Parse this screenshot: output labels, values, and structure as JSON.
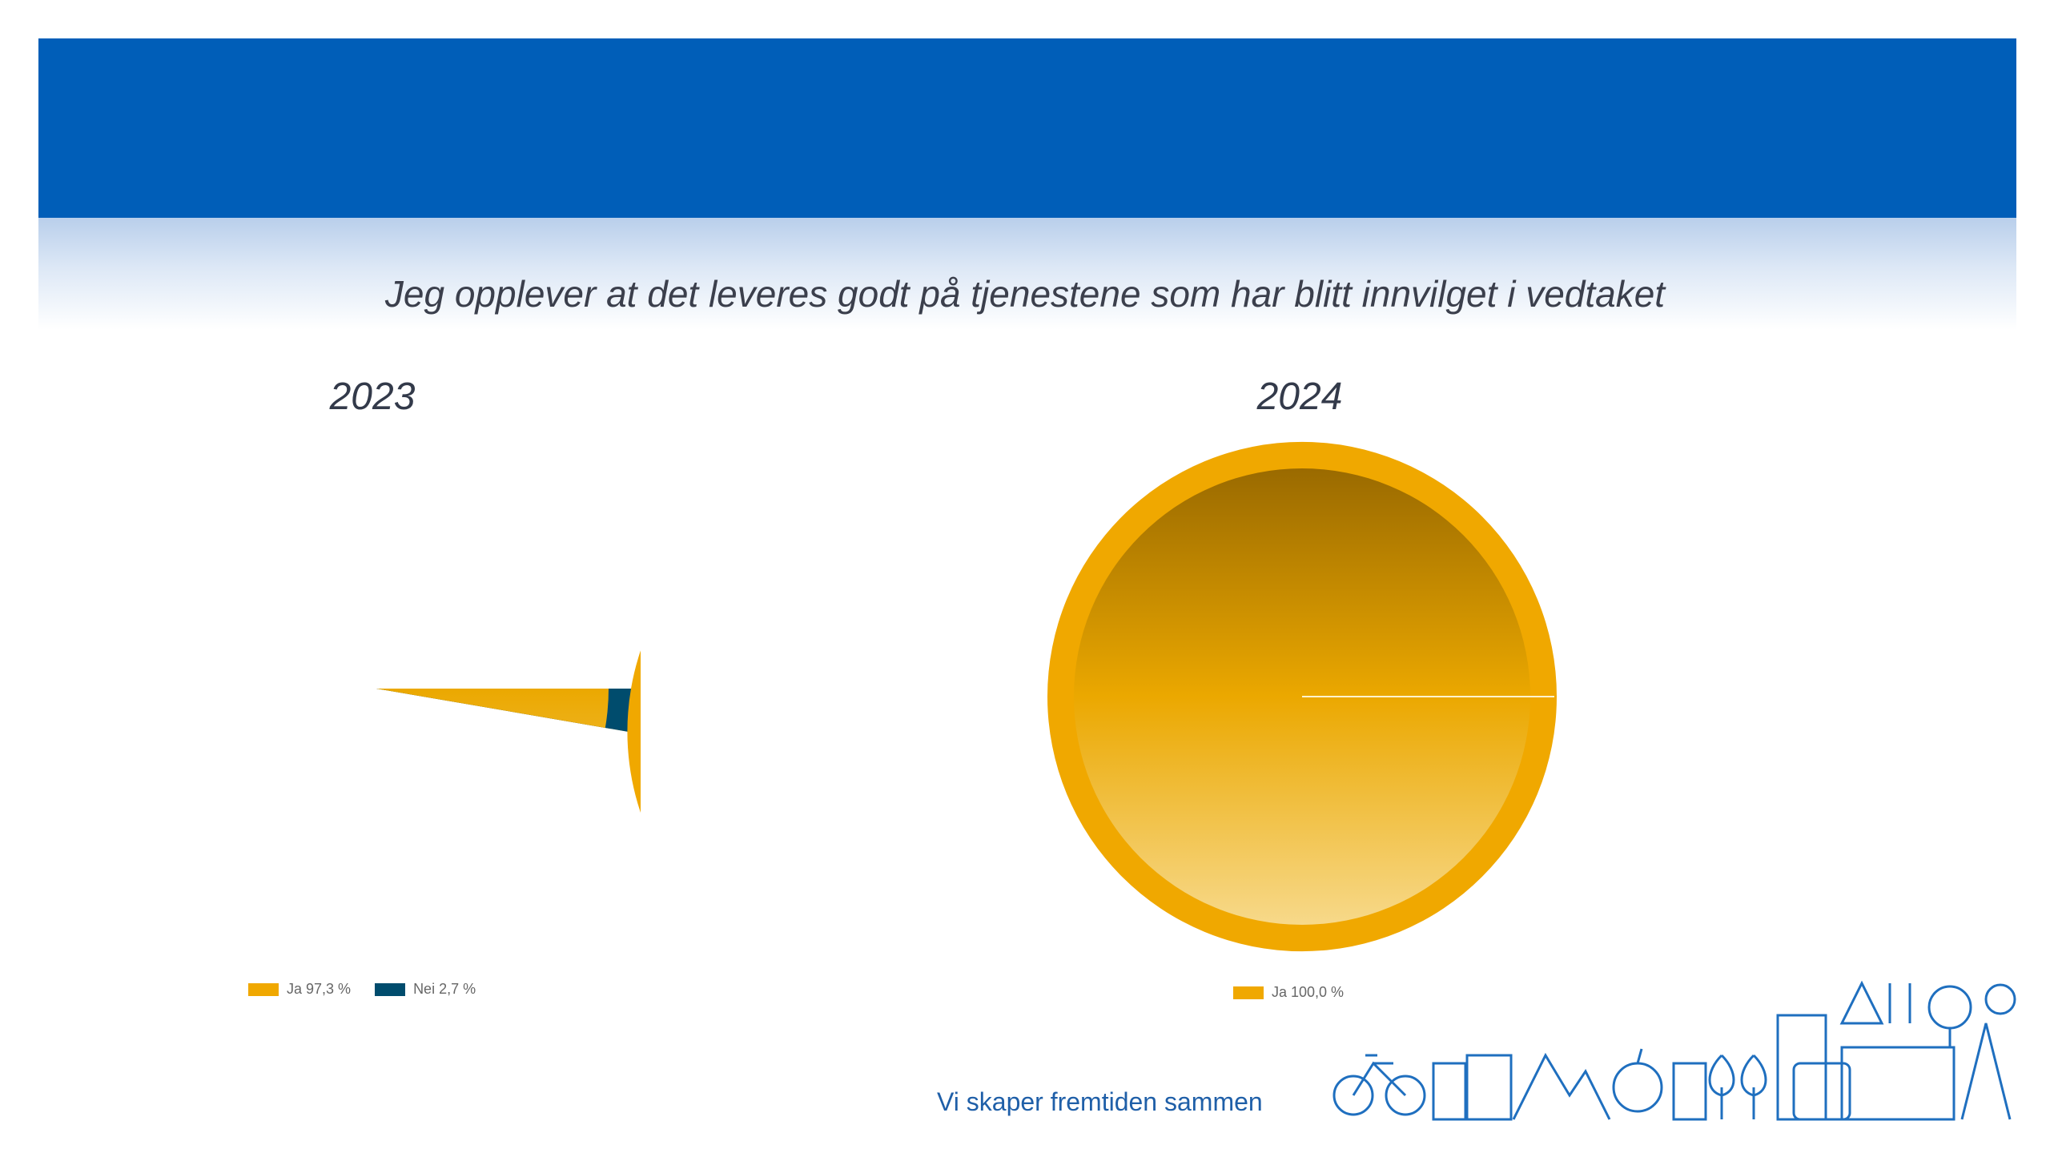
{
  "question": "Jeg opplever at det leveres godt på tjenestene som har blitt innvilget i vedtaket",
  "tagline": "Vi skaper fremtiden sammen",
  "colors": {
    "banner": "#005eb8",
    "ja": "#f0a800",
    "nei": "#004c6d"
  },
  "chart_data": [
    {
      "type": "pie",
      "title": "2023",
      "categories": [
        "Ja",
        "Nei"
      ],
      "values": [
        97.3,
        2.7
      ],
      "legend": [
        "Ja 97,3 %",
        "Nei 2,7 %"
      ],
      "legend_position": "bottom"
    },
    {
      "type": "pie",
      "title": "2024",
      "categories": [
        "Ja"
      ],
      "values": [
        100.0
      ],
      "legend": [
        "Ja 100,0 %"
      ],
      "legend_position": "bottom"
    }
  ]
}
